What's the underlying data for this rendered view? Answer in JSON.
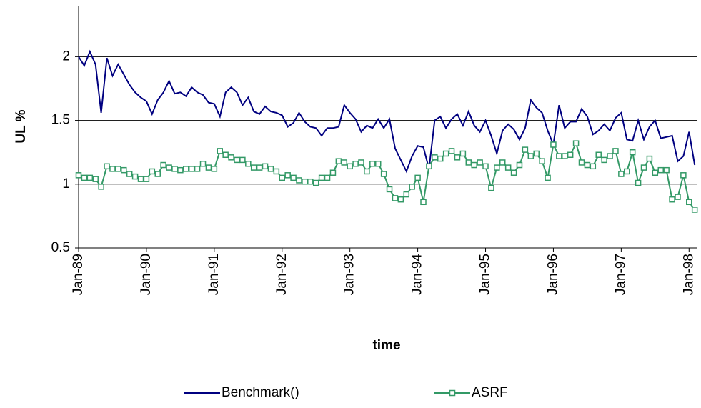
{
  "chart_data": {
    "type": "line",
    "x_label": "time",
    "y_label": "UL %",
    "categories": [
      "Jan-89",
      null,
      null,
      null,
      null,
      null,
      null,
      null,
      null,
      null,
      null,
      null,
      "Jan-90",
      null,
      null,
      null,
      null,
      null,
      null,
      null,
      null,
      null,
      null,
      null,
      "Jan-91",
      null,
      null,
      null,
      null,
      null,
      null,
      null,
      null,
      null,
      null,
      null,
      "Jan-92",
      null,
      null,
      null,
      null,
      null,
      null,
      null,
      null,
      null,
      null,
      null,
      "Jan-93",
      null,
      null,
      null,
      null,
      null,
      null,
      null,
      null,
      null,
      null,
      null,
      "Jan-94",
      null,
      null,
      null,
      null,
      null,
      null,
      null,
      null,
      null,
      null,
      null,
      "Jan-95",
      null,
      null,
      null,
      null,
      null,
      null,
      null,
      null,
      null,
      null,
      null,
      "Jan-96",
      null,
      null,
      null,
      null,
      null,
      null,
      null,
      null,
      null,
      null,
      null,
      "Jan-97",
      null,
      null,
      null,
      null,
      null,
      null,
      null,
      null,
      null,
      null,
      null,
      "Jan-98",
      null
    ],
    "series": [
      {
        "name": "Benchmark()",
        "color": "#000080",
        "marker": "none",
        "values": [
          2.0,
          1.93,
          2.04,
          1.94,
          1.56,
          1.99,
          1.85,
          1.94,
          1.86,
          1.78,
          1.72,
          1.68,
          1.65,
          1.55,
          1.66,
          1.72,
          1.81,
          1.71,
          1.72,
          1.69,
          1.76,
          1.72,
          1.7,
          1.64,
          1.63,
          1.53,
          1.72,
          1.76,
          1.72,
          1.62,
          1.68,
          1.57,
          1.55,
          1.61,
          1.57,
          1.56,
          1.54,
          1.45,
          1.48,
          1.56,
          1.49,
          1.45,
          1.44,
          1.38,
          1.44,
          1.44,
          1.45,
          1.62,
          1.56,
          1.51,
          1.41,
          1.46,
          1.44,
          1.51,
          1.44,
          1.51,
          1.28,
          1.19,
          1.1,
          1.22,
          1.3,
          1.29,
          1.12,
          1.5,
          1.53,
          1.44,
          1.51,
          1.55,
          1.46,
          1.57,
          1.46,
          1.41,
          1.5,
          1.38,
          1.24,
          1.42,
          1.47,
          1.43,
          1.35,
          1.44,
          1.66,
          1.6,
          1.56,
          1.42,
          1.31,
          1.62,
          1.44,
          1.49,
          1.49,
          1.59,
          1.53,
          1.39,
          1.42,
          1.47,
          1.42,
          1.52,
          1.56,
          1.35,
          1.34,
          1.5,
          1.35,
          1.45,
          1.5,
          1.36,
          1.37,
          1.38,
          1.18,
          1.22,
          1.41,
          1.15
        ]
      },
      {
        "name": "ASRF",
        "color": "#339966",
        "marker": "square",
        "values": [
          1.07,
          1.05,
          1.05,
          1.04,
          0.98,
          1.14,
          1.12,
          1.12,
          1.11,
          1.08,
          1.06,
          1.04,
          1.04,
          1.1,
          1.08,
          1.15,
          1.13,
          1.12,
          1.11,
          1.12,
          1.12,
          1.12,
          1.16,
          1.13,
          1.12,
          1.26,
          1.23,
          1.21,
          1.19,
          1.19,
          1.16,
          1.13,
          1.13,
          1.14,
          1.12,
          1.1,
          1.05,
          1.07,
          1.05,
          1.03,
          1.02,
          1.02,
          1.01,
          1.05,
          1.05,
          1.09,
          1.18,
          1.17,
          1.14,
          1.16,
          1.17,
          1.1,
          1.16,
          1.16,
          1.08,
          0.96,
          0.89,
          0.88,
          0.92,
          0.98,
          1.05,
          0.86,
          1.14,
          1.21,
          1.2,
          1.24,
          1.26,
          1.21,
          1.24,
          1.17,
          1.15,
          1.17,
          1.14,
          0.97,
          1.13,
          1.17,
          1.13,
          1.09,
          1.15,
          1.27,
          1.22,
          1.24,
          1.18,
          1.05,
          1.31,
          1.22,
          1.22,
          1.23,
          1.32,
          1.17,
          1.15,
          1.14,
          1.23,
          1.19,
          1.22,
          1.26,
          1.08,
          1.1,
          1.25,
          1.01,
          1.13,
          1.2,
          1.09,
          1.11,
          1.11,
          0.88,
          0.9,
          1.07,
          0.86,
          0.8
        ]
      }
    ],
    "ylim": [
      0.5,
      2.4
    ],
    "yticks": [
      0.5,
      1,
      1.5,
      2
    ],
    "grid": true,
    "legend": "bottom"
  }
}
